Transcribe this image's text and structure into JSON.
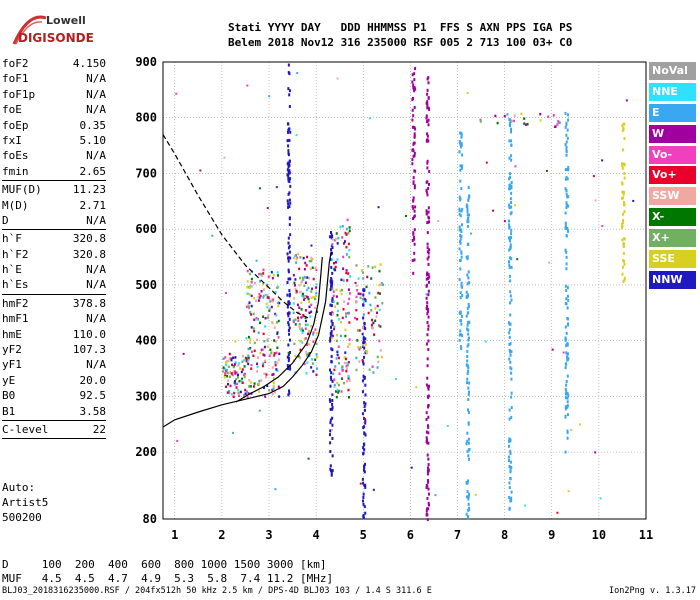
{
  "logo": {
    "line1": "Lowell",
    "line2": "DIGISONDE"
  },
  "header": {
    "line1": "Stati YYYY DAY   DDD HHMMSS P1  FFS S AXN PPS IGA PS",
    "line2": "Belem 2018 Nov12 316 235000 RSF 005 2 713 100 03+ C0"
  },
  "params": [
    {
      "label": "foF2",
      "value": "4.150"
    },
    {
      "label": "foF1",
      "value": "N/A"
    },
    {
      "label": "foF1p",
      "value": "N/A"
    },
    {
      "label": "foE",
      "value": "N/A"
    },
    {
      "label": "foEp",
      "value": "0.35"
    },
    {
      "label": "fxI",
      "value": "5.10"
    },
    {
      "label": "foEs",
      "value": "N/A"
    },
    {
      "label": "fmin",
      "value": "2.65"
    },
    {
      "sep": true
    },
    {
      "label": "MUF(D)",
      "value": "11.23"
    },
    {
      "label": "M(D)",
      "value": "2.71"
    },
    {
      "label": "D",
      "value": "N/A"
    },
    {
      "sep": true
    },
    {
      "label": "h`F",
      "value": "320.8"
    },
    {
      "label": "h`F2",
      "value": "320.8"
    },
    {
      "label": "h`E",
      "value": "N/A"
    },
    {
      "label": "h`Es",
      "value": "N/A"
    },
    {
      "sep": true
    },
    {
      "label": "hmF2",
      "value": "378.8"
    },
    {
      "label": "hmF1",
      "value": "N/A"
    },
    {
      "label": "hmE",
      "value": "110.0"
    },
    {
      "label": "yF2",
      "value": "107.3"
    },
    {
      "label": "yF1",
      "value": "N/A"
    },
    {
      "label": "yE",
      "value": "20.0"
    },
    {
      "label": "B0",
      "value": "92.5"
    },
    {
      "label": "B1",
      "value": "3.58"
    },
    {
      "sep": true
    },
    {
      "label": "C-level",
      "value": "22"
    },
    {
      "sep": true
    }
  ],
  "auto": {
    "line1": "Auto:",
    "line2": "Artist5",
    "line3": "500200"
  },
  "dmuf": {
    "d_line": "D     100  200  400  600  800 1000 1500 3000 [km]",
    "muf_line": "MUF   4.5  4.5  4.7  4.9  5.3  5.8  7.4 11.2 [MHz]"
  },
  "footer": "BLJ03_2018316235000.RSF / 204fx512h 50 kHz 2.5 km / DPS-4D BLJ03 103 / 1.4 S 311.6 E",
  "version": "Ion2Png v. 1.3.17",
  "legend": [
    {
      "label": "NoVal",
      "color": "#a0a0a0"
    },
    {
      "label": "NNE",
      "color": "#30e0ff"
    },
    {
      "label": "E",
      "color": "#3aa8f0"
    },
    {
      "label": "W",
      "color": "#a000a0"
    },
    {
      "label": "Vo-",
      "color": "#f040c0"
    },
    {
      "label": "Vo+",
      "color": "#e8002a"
    },
    {
      "label": "SSW",
      "color": "#f0a8a0"
    },
    {
      "label": "X-",
      "color": "#007800"
    },
    {
      "label": "X+",
      "color": "#70b060"
    },
    {
      "label": "SSE",
      "color": "#d8d020"
    },
    {
      "label": "NNW",
      "color": "#2018c0"
    }
  ],
  "chart_data": {
    "type": "scatter",
    "xlim": [
      0.75,
      11
    ],
    "ylim": [
      80,
      900
    ],
    "xticks": [
      1,
      2,
      3,
      4,
      5,
      6,
      7,
      8,
      9,
      10,
      11
    ],
    "yticks": [
      80,
      200,
      300,
      400,
      500,
      600,
      700,
      800,
      900
    ],
    "grid": true,
    "traces": [
      {
        "freq": 3.4,
        "hmin": 300,
        "hmax": 900,
        "color": "#2018c0"
      },
      {
        "freq": 4.3,
        "hmin": 150,
        "hmax": 600,
        "color": "#2018c0"
      },
      {
        "freq": 5.0,
        "hmin": 82,
        "hmax": 510,
        "color": "#2018c0"
      },
      {
        "freq": 6.05,
        "hmin": 520,
        "hmax": 895,
        "color": "#a000a0"
      },
      {
        "freq": 6.35,
        "hmin": 80,
        "hmax": 890,
        "color": "#a000a0"
      },
      {
        "freq": 7.2,
        "hmin": 82,
        "hmax": 680,
        "color": "#3aa8f0"
      },
      {
        "freq": 7.05,
        "hmin": 380,
        "hmax": 790,
        "color": "#3aa8f0"
      },
      {
        "freq": 8.1,
        "hmin": 90,
        "hmax": 800,
        "color": "#3aa8f0"
      },
      {
        "freq": 9.3,
        "hmin": 200,
        "hmax": 820,
        "color": "#3aa8f0"
      },
      {
        "freq": 10.5,
        "hmin": 500,
        "hmax": 800,
        "color": "#d8d020"
      }
    ],
    "clusters": [
      {
        "f0": 2.0,
        "f1": 2.55,
        "h0": 300,
        "h1": 380,
        "n": 90
      },
      {
        "f0": 2.5,
        "f1": 3.2,
        "h0": 300,
        "h1": 530,
        "n": 180
      },
      {
        "f0": 3.5,
        "f1": 4.0,
        "h0": 340,
        "h1": 560,
        "n": 150
      },
      {
        "f0": 4.3,
        "f1": 4.7,
        "h0": 300,
        "h1": 620,
        "n": 130
      },
      {
        "f0": 4.8,
        "f1": 5.4,
        "h0": 340,
        "h1": 540,
        "n": 80
      },
      {
        "f0": 7.4,
        "f1": 9.2,
        "h0": 785,
        "h1": 810,
        "n": 25
      }
    ],
    "trace_o_curve": [
      [
        0.75,
        245
      ],
      [
        1.0,
        258
      ],
      [
        1.5,
        272
      ],
      [
        2.0,
        285
      ],
      [
        2.5,
        295
      ],
      [
        3.0,
        305
      ],
      [
        3.3,
        318
      ],
      [
        3.5,
        335
      ],
      [
        3.7,
        355
      ],
      [
        3.9,
        380
      ],
      [
        4.05,
        410
      ],
      [
        4.2,
        470
      ],
      [
        4.28,
        540
      ],
      [
        4.32,
        560
      ]
    ],
    "trace_x_curve": [
      [
        2.3,
        290
      ],
      [
        2.6,
        305
      ],
      [
        2.9,
        318
      ],
      [
        3.2,
        335
      ],
      [
        3.5,
        360
      ],
      [
        3.8,
        395
      ],
      [
        3.95,
        430
      ],
      [
        4.05,
        470
      ],
      [
        4.1,
        520
      ],
      [
        4.13,
        550
      ]
    ],
    "dashed_curve": [
      [
        0.75,
        770
      ],
      [
        1.0,
        735
      ],
      [
        1.5,
        660
      ],
      [
        2.0,
        590
      ],
      [
        2.5,
        535
      ],
      [
        3.0,
        495
      ],
      [
        3.3,
        470
      ],
      [
        3.6,
        450
      ],
      [
        3.85,
        440
      ]
    ]
  }
}
